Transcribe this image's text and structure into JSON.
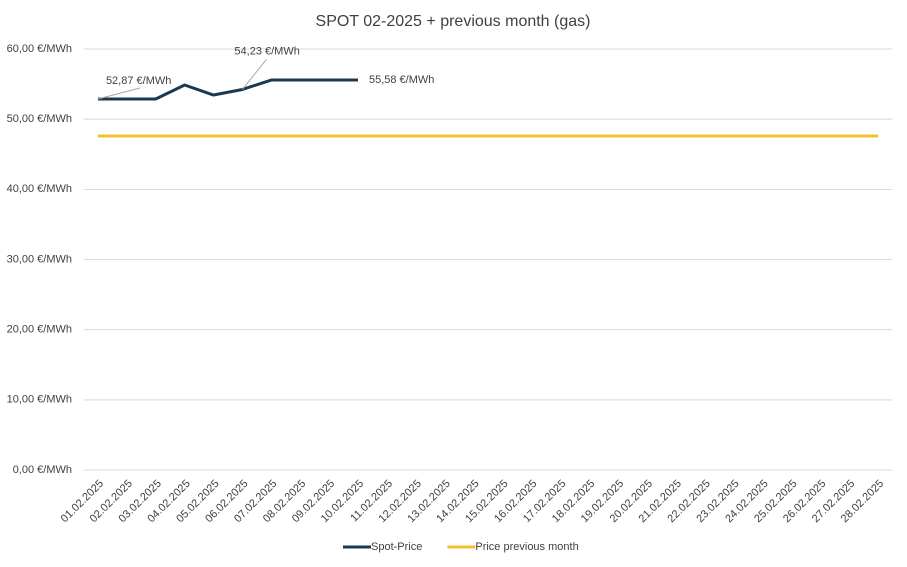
{
  "chart_data": {
    "type": "line",
    "title": "SPOT 02-2025 + previous month (gas)",
    "categories": [
      "01.02.2025",
      "02.02.2025",
      "03.02.2025",
      "04.02.2025",
      "05.02.2025",
      "06.02.2025",
      "07.02.2025",
      "08.02.2025",
      "09.02.2025",
      "10.02.2025",
      "11.02.2025",
      "12.02.2025",
      "13.02.2025",
      "14.02.2025",
      "15.02.2025",
      "16.02.2025",
      "17.02.2025",
      "18.02.2025",
      "19.02.2025",
      "20.02.2025",
      "21.02.2025",
      "22.02.2025",
      "23.02.2025",
      "24.02.2025",
      "25.02.2025",
      "26.02.2025",
      "27.02.2025",
      "28.02.2025"
    ],
    "series": [
      {
        "name": "Spot-Price",
        "color": "#1b3a52",
        "values": [
          52.87,
          52.87,
          52.87,
          54.87,
          53.44,
          54.23,
          55.58,
          55.58,
          55.58,
          55.58,
          null,
          null,
          null,
          null,
          null,
          null,
          null,
          null,
          null,
          null,
          null,
          null,
          null,
          null,
          null,
          null,
          null,
          null
        ],
        "value_labels": [
          "52,87 €/MWh",
          null,
          null,
          null,
          null,
          "54,23 €/MWh",
          null,
          null,
          null,
          "55,58 €/MWh",
          null,
          null,
          null,
          null,
          null,
          null,
          null,
          null,
          null,
          null,
          null,
          null,
          null,
          null,
          null,
          null,
          null,
          null
        ]
      },
      {
        "name": "Price previous month",
        "color": "#f2c12e",
        "values": [
          47.6,
          47.6,
          47.6,
          47.6,
          47.6,
          47.6,
          47.6,
          47.6,
          47.6,
          47.6,
          47.6,
          47.6,
          47.6,
          47.6,
          47.6,
          47.6,
          47.6,
          47.6,
          47.6,
          47.6,
          47.6,
          47.6,
          47.6,
          47.6,
          47.6,
          47.6,
          47.6,
          47.6
        ]
      }
    ],
    "ylim": [
      0,
      60
    ],
    "yticks": [
      {
        "value": 0,
        "label": "0,00 €/MWh"
      },
      {
        "value": 10,
        "label": "10,00 €/MWh"
      },
      {
        "value": 20,
        "label": "20,00 €/MWh"
      },
      {
        "value": 30,
        "label": "30,00 €/MWh"
      },
      {
        "value": 40,
        "label": "40,00 €/MWh"
      },
      {
        "value": 50,
        "label": "50,00 €/MWh"
      },
      {
        "value": 60,
        "label": "60,00 €/MWh"
      }
    ],
    "grid": true,
    "legend": "bottom"
  }
}
